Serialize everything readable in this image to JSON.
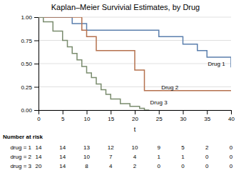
{
  "chart_data": {
    "type": "step",
    "title": "Kaplan–Meier Survivial Estimates, by Drug",
    "xlabel": "t",
    "xlim": [
      0,
      40
    ],
    "ylim": [
      0,
      1.0
    ],
    "xticks": [
      0,
      5,
      10,
      15,
      20,
      25,
      30,
      35,
      40
    ],
    "yticks": [
      {
        "value": 0.0,
        "label": "0.00"
      },
      {
        "value": 0.25,
        "label": "0.25"
      },
      {
        "value": 0.5,
        "label": "0.50"
      },
      {
        "value": 0.75,
        "label": "0.75"
      },
      {
        "value": 1.0,
        "label": "1.00"
      }
    ],
    "grid": true,
    "series": [
      {
        "name": "Drug 1",
        "color": "#5b7fad",
        "x": [
          0,
          7,
          10,
          25,
          30,
          33,
          35,
          40
        ],
        "values": [
          1.0,
          0.93,
          0.86,
          0.79,
          0.71,
          0.64,
          0.57,
          0.46
        ]
      },
      {
        "name": "Drug 2",
        "color": "#b5714e",
        "x": [
          0,
          5,
          9,
          10,
          12,
          20,
          22,
          40
        ],
        "values": [
          1.0,
          1.0,
          0.86,
          0.79,
          0.64,
          0.43,
          0.21,
          0.21
        ]
      },
      {
        "name": "Drug 3",
        "color": "#7a8c6e",
        "x": [
          0,
          1,
          3,
          5,
          6,
          7,
          8,
          9,
          10,
          11,
          12,
          13,
          14,
          15,
          17,
          19,
          21,
          22,
          23
        ],
        "values": [
          1.0,
          0.95,
          0.85,
          0.75,
          0.68,
          0.61,
          0.54,
          0.47,
          0.4,
          0.35,
          0.28,
          0.22,
          0.17,
          0.12,
          0.07,
          0.04,
          0.02,
          0.0,
          0.0
        ]
      }
    ],
    "annotations": [
      {
        "text": "Drug 1",
        "x": 35.2,
        "y": 0.46
      },
      {
        "text": "Drug 2",
        "x": 25.5,
        "y": 0.21
      },
      {
        "text": "Drug 3",
        "x": 23.2,
        "y": 0.05
      }
    ],
    "risk_table": {
      "header": "Number at risk",
      "rows": [
        "drug = 1",
        "drug = 2",
        "drug = 3"
      ],
      "times": [
        0,
        5,
        10,
        15,
        20,
        25,
        30,
        35,
        40
      ],
      "values": [
        [
          14,
          14,
          13,
          12,
          10,
          9,
          5,
          2,
          0
        ],
        [
          14,
          14,
          10,
          7,
          4,
          1,
          1,
          0,
          0
        ],
        [
          20,
          14,
          8,
          4,
          2,
          0,
          0,
          0,
          0
        ]
      ]
    }
  }
}
